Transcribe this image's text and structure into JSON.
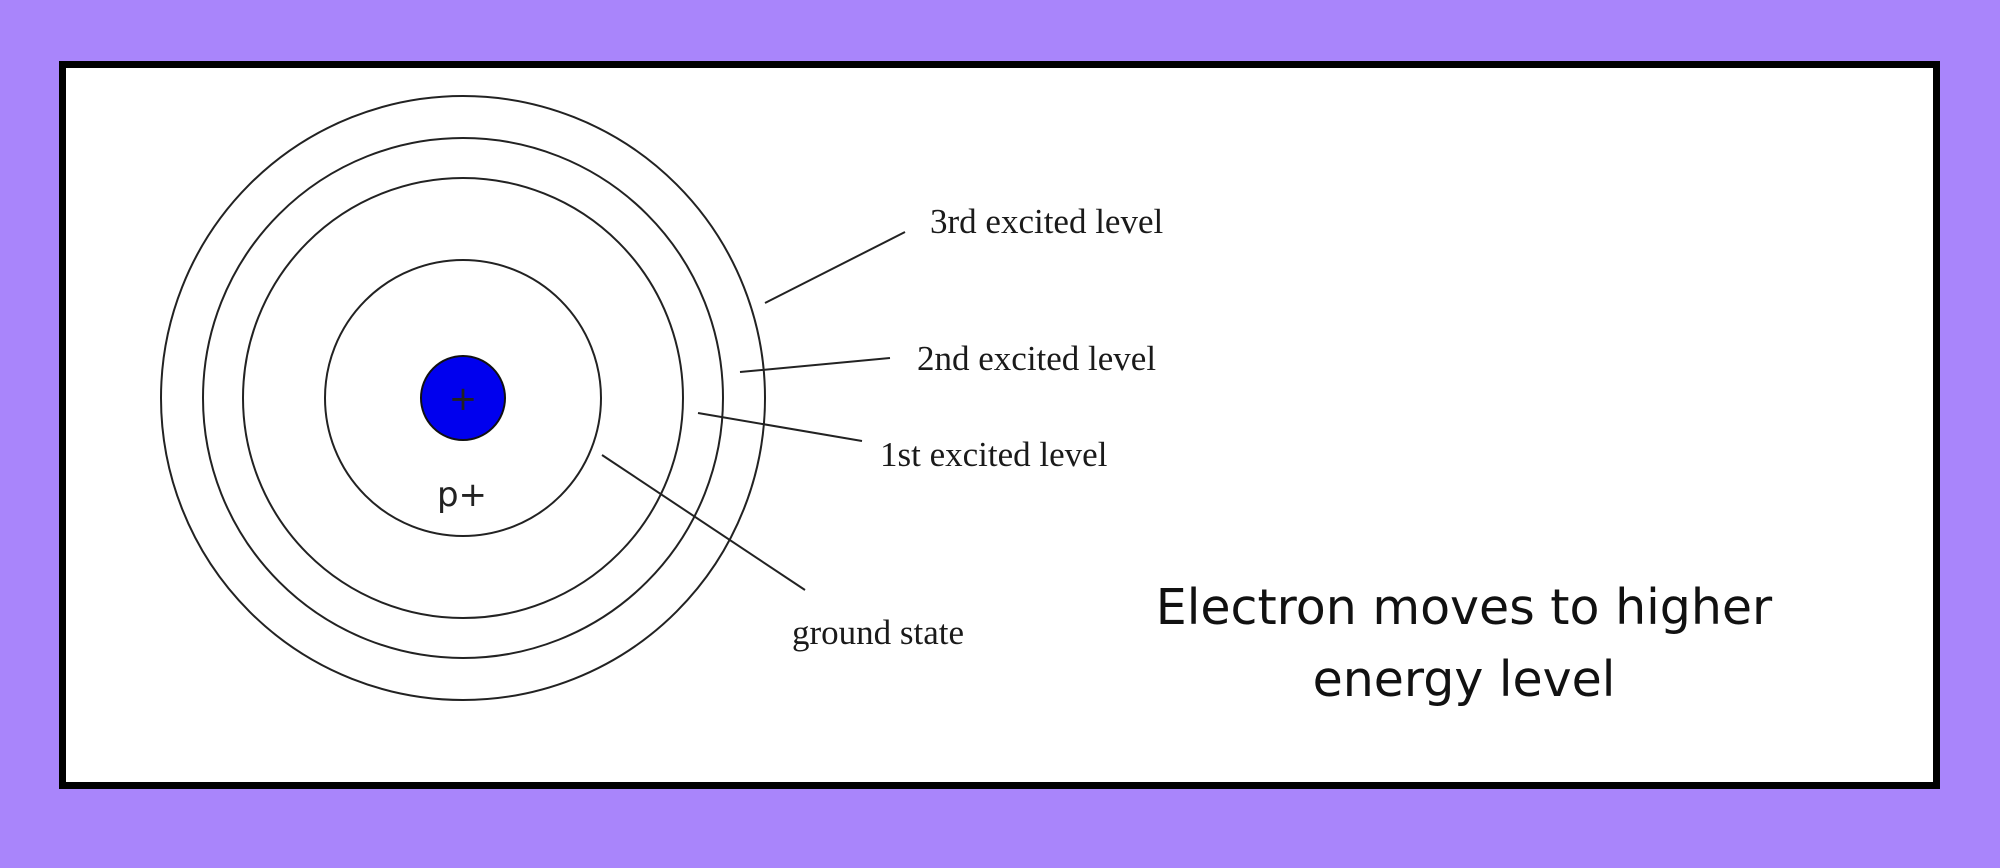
{
  "labels": {
    "third": "3rd excited level",
    "second": "2nd excited level",
    "first": "1st excited level",
    "ground": "ground state",
    "nucleus_sign": "+",
    "proton": "p+"
  },
  "caption": {
    "line1": "Electron moves to higher",
    "line2": "energy level"
  },
  "colors": {
    "background": "#a985fb",
    "panel": "#ffffff",
    "border": "#000000",
    "nucleus": "#0000ee"
  }
}
